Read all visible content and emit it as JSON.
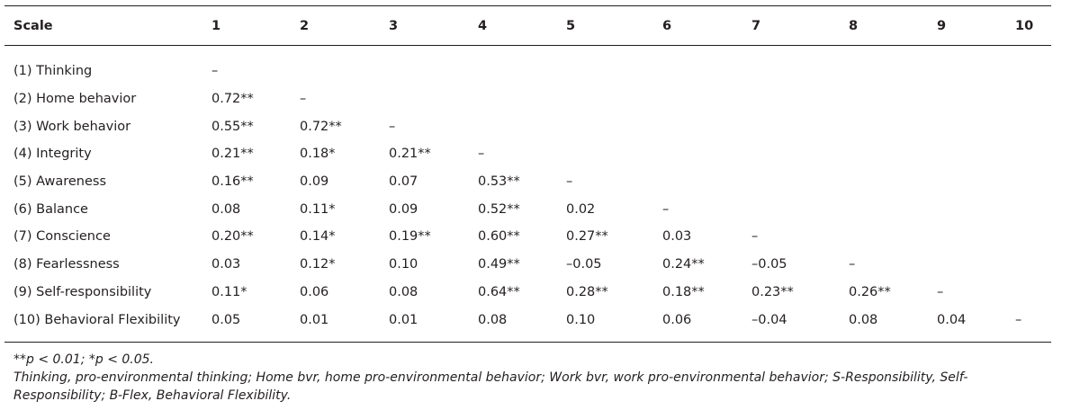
{
  "table": {
    "headers": [
      "Scale",
      "1",
      "2",
      "3",
      "4",
      "5",
      "6",
      "7",
      "8",
      "9",
      "10"
    ],
    "rows": [
      {
        "label": "(1) Thinking",
        "cells": [
          "–",
          "",
          "",
          "",
          "",
          "",
          "",
          "",
          "",
          ""
        ]
      },
      {
        "label": "(2) Home behavior",
        "cells": [
          "0.72**",
          "–",
          "",
          "",
          "",
          "",
          "",
          "",
          "",
          ""
        ]
      },
      {
        "label": "(3) Work behavior",
        "cells": [
          "0.55**",
          "0.72**",
          "–",
          "",
          "",
          "",
          "",
          "",
          "",
          ""
        ]
      },
      {
        "label": "(4) Integrity",
        "cells": [
          "0.21**",
          "0.18*",
          "0.21**",
          "–",
          "",
          "",
          "",
          "",
          "",
          ""
        ]
      },
      {
        "label": "(5) Awareness",
        "cells": [
          "0.16**",
          "0.09",
          "0.07",
          "0.53**",
          "–",
          "",
          "",
          "",
          "",
          ""
        ]
      },
      {
        "label": "(6) Balance",
        "cells": [
          "0.08",
          "0.11*",
          "0.09",
          "0.52**",
          "0.02",
          "–",
          "",
          "",
          "",
          ""
        ]
      },
      {
        "label": "(7) Conscience",
        "cells": [
          "0.20**",
          "0.14*",
          "0.19**",
          "0.60**",
          "0.27**",
          "0.03",
          "–",
          "",
          "",
          ""
        ]
      },
      {
        "label": "(8) Fearlessness",
        "cells": [
          "0.03",
          "0.12*",
          "0.10",
          "0.49**",
          "–0.05",
          "0.24**",
          "–0.05",
          "–",
          "",
          ""
        ]
      },
      {
        "label": "(9) Self-responsibility",
        "cells": [
          "0.11*",
          "0.06",
          "0.08",
          "0.64**",
          "0.28**",
          "0.18**",
          "0.23**",
          "0.26**",
          "–",
          ""
        ]
      },
      {
        "label": "(10) Behavioral Flexibility",
        "cells": [
          "0.05",
          "0.01",
          "0.01",
          "0.08",
          "0.10",
          "0.06",
          "–0.04",
          "0.08",
          "0.04",
          "–"
        ]
      }
    ]
  },
  "notes": {
    "significance": "**p < 0.01; *p < 0.05.",
    "abbreviations": "Thinking, pro-environmental thinking; Home bvr, home pro-environmental behavior; Work bvr, work pro-environmental behavior; S-Responsibility, Self-Responsibility; B-Flex, Behavioral Flexibility."
  }
}
